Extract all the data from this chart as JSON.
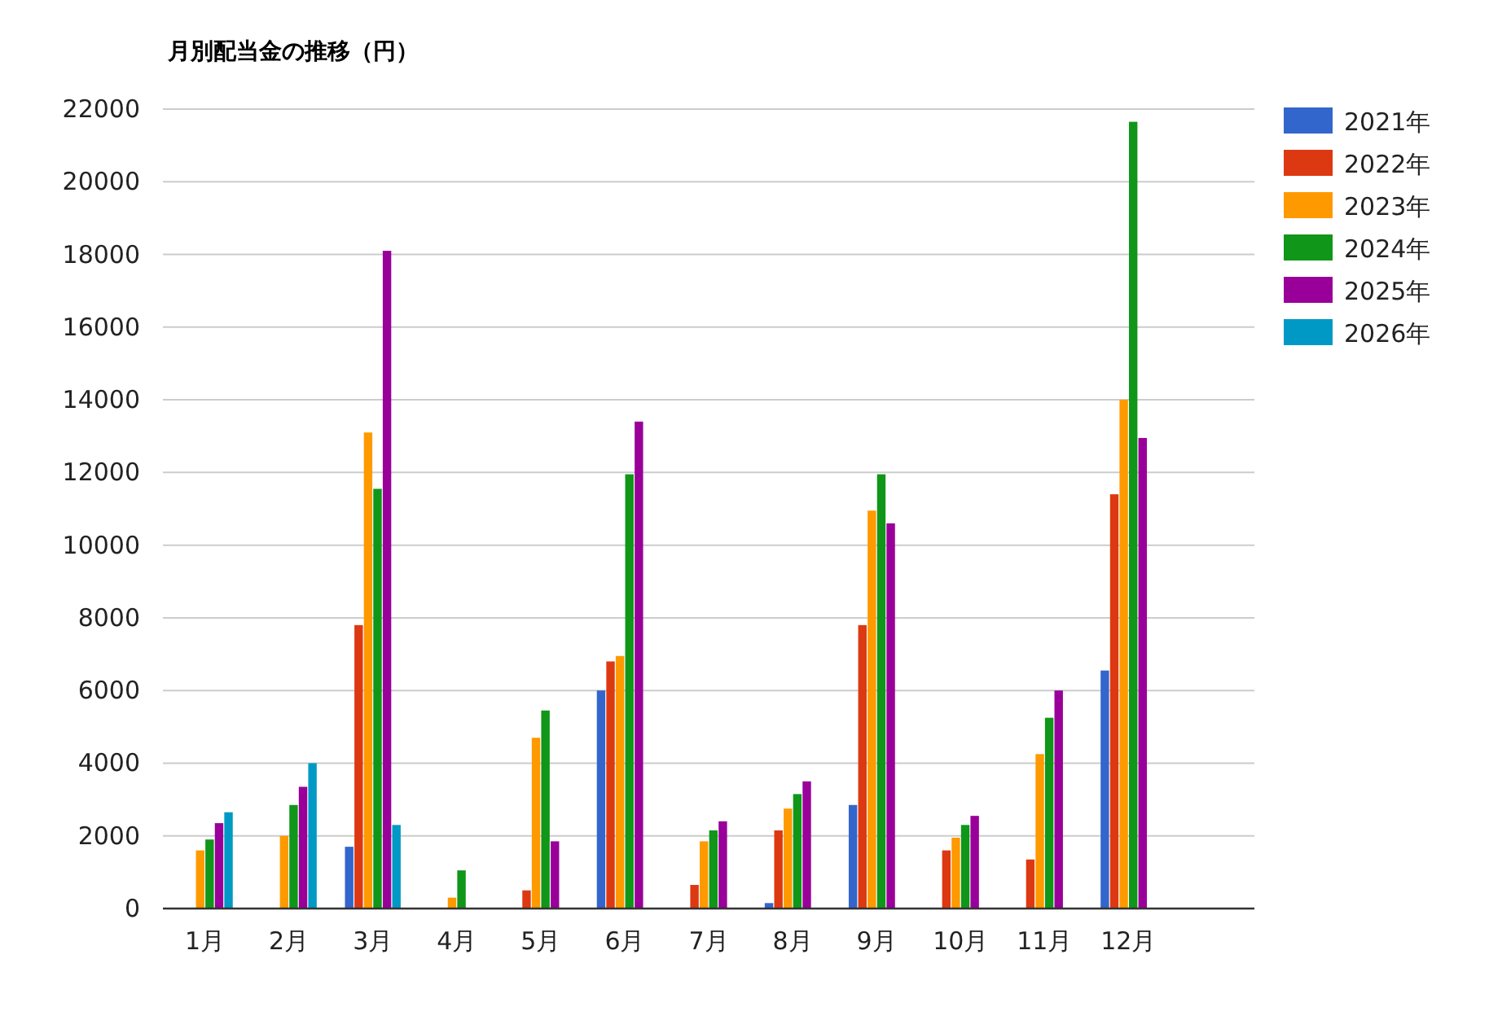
{
  "chart_data": {
    "type": "bar",
    "title": "月別配当金の推移（円）",
    "categories": [
      "1月",
      "2月",
      "3月",
      "4月",
      "5月",
      "6月",
      "7月",
      "8月",
      "9月",
      "10月",
      "11月",
      "12月",
      null
    ],
    "series": [
      {
        "name": "2021年",
        "color": "#3366cc",
        "values": [
          null,
          null,
          1700,
          null,
          null,
          6000,
          null,
          150,
          2850,
          null,
          null,
          6550,
          null
        ]
      },
      {
        "name": "2022年",
        "color": "#dc3912",
        "values": [
          null,
          null,
          7800,
          null,
          500,
          6800,
          650,
          2150,
          7800,
          1600,
          1350,
          11400,
          null
        ]
      },
      {
        "name": "2023年",
        "color": "#ff9900",
        "values": [
          1600,
          2000,
          13100,
          300,
          4700,
          6950,
          1850,
          2750,
          10950,
          1950,
          4250,
          14000,
          null
        ]
      },
      {
        "name": "2024年",
        "color": "#109618",
        "values": [
          1900,
          2850,
          11550,
          1050,
          5450,
          11950,
          2150,
          3150,
          11950,
          2300,
          5250,
          21650,
          null
        ]
      },
      {
        "name": "2025年",
        "color": "#990099",
        "values": [
          2350,
          3350,
          18100,
          null,
          1850,
          13400,
          2400,
          3500,
          10600,
          2550,
          6000,
          12950,
          null
        ]
      },
      {
        "name": "2026年",
        "color": "#0099c6",
        "values": [
          2650,
          4000,
          2300,
          null,
          null,
          null,
          null,
          null,
          null,
          null,
          null,
          null,
          null
        ]
      }
    ],
    "ylim": [
      0,
      22000
    ],
    "yticks": [
      0,
      2000,
      4000,
      6000,
      8000,
      10000,
      12000,
      14000,
      16000,
      18000,
      20000,
      22000
    ],
    "grid": "y",
    "legend": "top right"
  }
}
